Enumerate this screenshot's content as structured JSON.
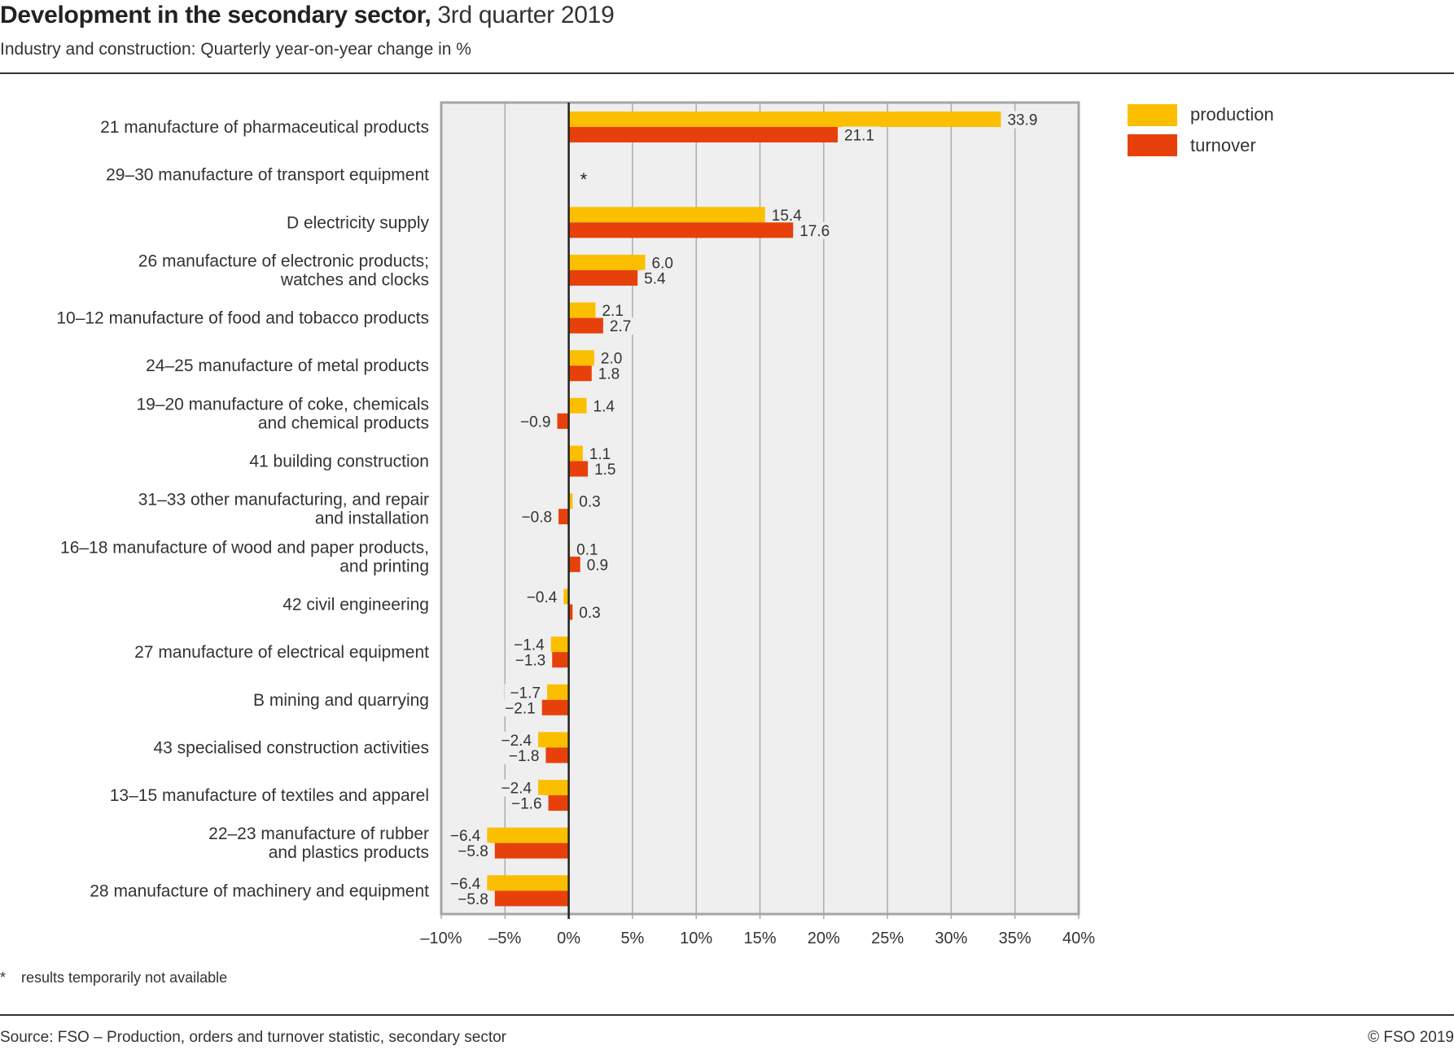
{
  "header": {
    "title_bold": "Development in the secondary sector,",
    "title_regular": " 3rd quarter 2019",
    "subtitle": "Industry and construction: Quarterly year-on-year change in %"
  },
  "legend": [
    {
      "label": "production",
      "color": "#FBBF00"
    },
    {
      "label": "turnover",
      "color": "#E8400A"
    }
  ],
  "footer": {
    "footnote_marker": "*",
    "footnote_text": "results temporarily not available",
    "source": "Source: FSO – Production, orders and turnover statistic, secondary sector",
    "copyright": "© FSO 2019"
  },
  "chart_data": {
    "type": "bar",
    "orientation": "horizontal",
    "title": "Development in the secondary sector, 3rd quarter 2019",
    "subtitle": "Industry and construction: Quarterly year-on-year change in %",
    "xlabel": "",
    "ylabel": "",
    "xlim": [
      -10,
      40
    ],
    "xticks": [
      -10,
      -5,
      0,
      5,
      10,
      15,
      20,
      25,
      30,
      35,
      40
    ],
    "xtick_labels": [
      "–10%",
      "–5%",
      "0%",
      "5%",
      "10%",
      "15%",
      "20%",
      "25%",
      "30%",
      "35%",
      "40%"
    ],
    "grid": true,
    "legend_position": "top-right",
    "categories": [
      [
        "21 manufacture of pharmaceutical products"
      ],
      [
        "29–30 manufacture of transport equipment"
      ],
      [
        "D electricity supply"
      ],
      [
        "26 manufacture of electronic products;",
        "watches and clocks"
      ],
      [
        "10–12 manufacture of food and tobacco products"
      ],
      [
        "24–25 manufacture of metal products"
      ],
      [
        "19–20 manufacture of coke, chemicals",
        "and chemical products"
      ],
      [
        "41 building construction"
      ],
      [
        "31–33 other manufacturing, and repair",
        "and installation"
      ],
      [
        "16–18 manufacture of wood and paper products,",
        "and printing"
      ],
      [
        "42 civil engineering"
      ],
      [
        "27 manufacture of electrical equipment"
      ],
      [
        "B mining and quarrying"
      ],
      [
        "43 specialised construction activities"
      ],
      [
        "13–15 manufacture of textiles and apparel"
      ],
      [
        "22–23 manufacture of rubber",
        "and plastics products"
      ],
      [
        "28 manufacture of machinery and equipment"
      ]
    ],
    "series": [
      {
        "name": "production",
        "color": "#FBBF00",
        "values": [
          33.9,
          null,
          15.4,
          6.0,
          2.1,
          2.0,
          1.4,
          1.1,
          0.3,
          0.1,
          -0.4,
          -1.4,
          -1.7,
          -2.4,
          -2.4,
          -6.4,
          -6.4
        ]
      },
      {
        "name": "turnover",
        "color": "#E8400A",
        "values": [
          21.1,
          null,
          17.6,
          5.4,
          2.7,
          1.8,
          -0.9,
          1.5,
          -0.8,
          0.9,
          0.3,
          -1.3,
          -2.1,
          -1.8,
          -1.6,
          -5.8,
          -5.8
        ]
      }
    ],
    "missing_marker": "*",
    "annotations": [
      "* results temporarily not available"
    ]
  }
}
